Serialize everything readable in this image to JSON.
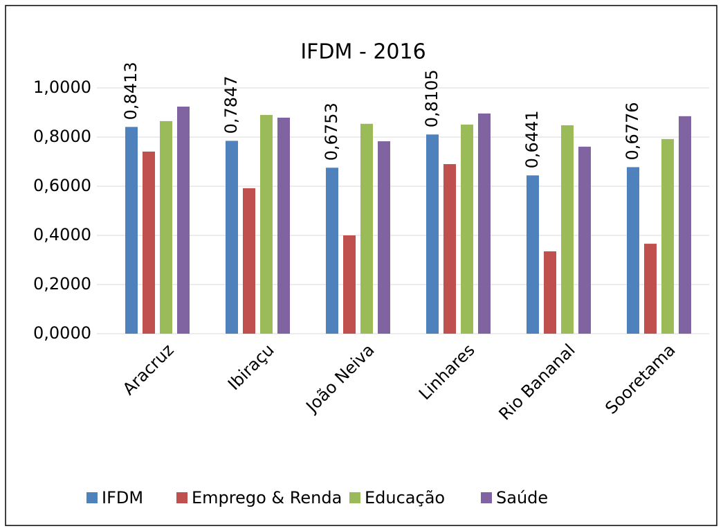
{
  "chart_data": {
    "type": "bar",
    "title": "IFDM - 2016",
    "categories": [
      "Aracruz",
      "Ibiraçu",
      "João Neiva",
      "Linhares",
      "Rio Bananal",
      "Sooretama"
    ],
    "series": [
      {
        "name": "IFDM",
        "color": "#4f81bd",
        "values": [
          0.8413,
          0.7847,
          0.6753,
          0.8105,
          0.6441,
          0.6776
        ],
        "value_labels": [
          "0,8413",
          "0,7847",
          "0,6753",
          "0,8105",
          "0,6441",
          "0,6776"
        ]
      },
      {
        "name": "Emprego & Renda",
        "color": "#c0504d",
        "values": [
          0.741,
          0.592,
          0.4,
          0.69,
          0.335,
          0.366
        ]
      },
      {
        "name": "Educação",
        "color": "#9bbb59",
        "values": [
          0.865,
          0.89,
          0.854,
          0.851,
          0.848,
          0.792
        ]
      },
      {
        "name": "Saúde",
        "color": "#8064a2",
        "values": [
          0.924,
          0.879,
          0.783,
          0.896,
          0.761,
          0.885
        ]
      }
    ],
    "ylim": [
      0,
      1
    ],
    "yticks": [
      {
        "value": 0,
        "label": "0,0000"
      },
      {
        "value": 0.2,
        "label": "0,2000"
      },
      {
        "value": 0.4,
        "label": "0,4000"
      },
      {
        "value": 0.6,
        "label": "0,6000"
      },
      {
        "value": 0.8,
        "label": "0,8000"
      },
      {
        "value": 1,
        "label": "1,0000"
      }
    ],
    "grid": true,
    "legend": "bottom"
  }
}
